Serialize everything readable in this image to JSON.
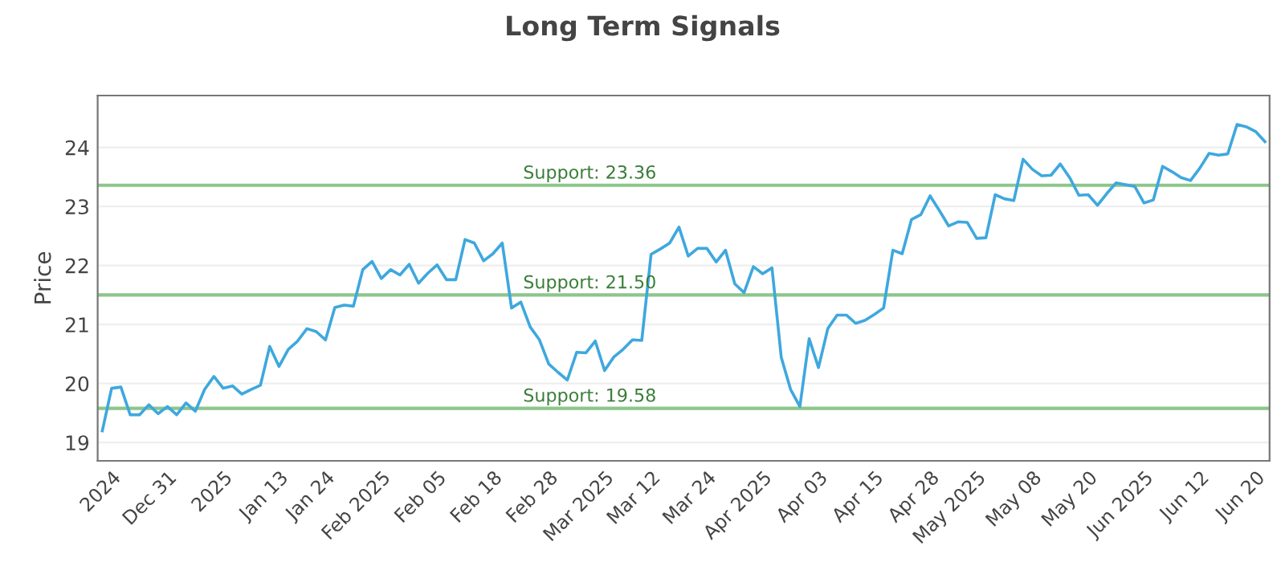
{
  "chart_data": {
    "type": "line",
    "title": "Long Term Signals",
    "ylabel": "Price",
    "categories": [
      null,
      "2024",
      null,
      null,
      null,
      null,
      null,
      "Dec 31",
      null,
      null,
      null,
      null,
      null,
      "2025",
      null,
      null,
      null,
      null,
      null,
      "Jan 13",
      null,
      null,
      null,
      null,
      "Jan 24",
      null,
      null,
      null,
      null,
      null,
      "Feb 2025",
      null,
      null,
      null,
      null,
      null,
      "Feb 05",
      null,
      null,
      null,
      null,
      null,
      "Feb 18",
      null,
      null,
      null,
      null,
      null,
      "Feb 28",
      null,
      null,
      null,
      null,
      null,
      "Mar 2025",
      null,
      null,
      null,
      null,
      "Mar 12",
      null,
      null,
      null,
      null,
      null,
      "Mar 24",
      null,
      null,
      null,
      null,
      null,
      "Apr 2025",
      null,
      null,
      null,
      null,
      null,
      "Apr 03",
      null,
      null,
      null,
      null,
      null,
      "Apr 15",
      null,
      null,
      null,
      null,
      null,
      "Apr 28",
      null,
      null,
      null,
      null,
      "May 2025",
      null,
      null,
      null,
      null,
      null,
      "May 08",
      null,
      null,
      null,
      null,
      null,
      "May 20",
      null,
      null,
      null,
      null,
      null,
      "Jun 2025",
      null,
      null,
      null,
      null,
      null,
      "Jun 12",
      null,
      null,
      null,
      null,
      null,
      "Jun 20",
      null
    ],
    "series": [
      {
        "color": "#3ea8de",
        "values": [
          19.2,
          19.92,
          19.94,
          19.47,
          19.47,
          19.64,
          19.49,
          19.61,
          19.47,
          19.67,
          19.53,
          19.9,
          20.12,
          19.92,
          19.96,
          19.82,
          19.9,
          19.97,
          20.63,
          20.29,
          20.58,
          20.72,
          20.93,
          20.88,
          20.74,
          21.29,
          21.33,
          21.31,
          21.93,
          22.07,
          21.78,
          21.93,
          21.84,
          22.02,
          21.7,
          21.87,
          22.01,
          21.76,
          21.76,
          22.44,
          22.38,
          22.08,
          22.2,
          22.38,
          21.28,
          21.38,
          20.96,
          20.74,
          20.33,
          20.19,
          20.06,
          20.53,
          20.52,
          20.72,
          20.22,
          20.45,
          20.58,
          20.74,
          20.73,
          22.19,
          22.28,
          22.38,
          22.65,
          22.16,
          22.29,
          22.29,
          22.06,
          22.26,
          21.69,
          21.54,
          21.98,
          21.86,
          21.96,
          20.44,
          19.9,
          19.61,
          20.76,
          20.27,
          20.93,
          21.16,
          21.16,
          21.02,
          21.07,
          21.17,
          21.28,
          22.26,
          22.2,
          22.78,
          22.86,
          23.18,
          22.93,
          22.67,
          22.74,
          22.73,
          22.46,
          22.47,
          23.2,
          23.13,
          23.1,
          23.8,
          23.63,
          23.52,
          23.53,
          23.72,
          23.49,
          23.19,
          23.2,
          23.02,
          23.22,
          23.4,
          23.37,
          23.34,
          23.06,
          23.11,
          23.68,
          23.59,
          23.49,
          23.44,
          23.65,
          23.9,
          23.87,
          23.89,
          24.39,
          24.35,
          24.27,
          24.1
        ]
      }
    ],
    "ylim": [
      18.69,
      24.88
    ],
    "yticks": [
      19,
      20,
      21,
      22,
      23,
      24
    ],
    "grid": "y",
    "legend": false,
    "ref_lines": [
      {
        "axis": "y",
        "value": 23.36,
        "label": "Support: 23.36",
        "color": "#8cc68a"
      },
      {
        "axis": "y",
        "value": 21.5,
        "label": "Support: 21.50",
        "color": "#8cc68a"
      },
      {
        "axis": "y",
        "value": 19.58,
        "label": "Support: 19.58",
        "color": "#8cc68a"
      }
    ]
  }
}
